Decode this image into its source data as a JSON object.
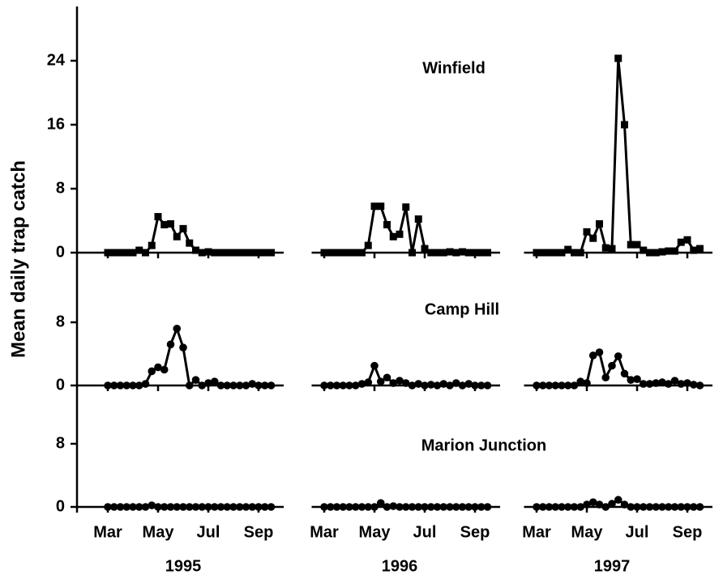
{
  "y_label": "Mean daily trap catch",
  "x_axis": {
    "segments": [
      {
        "year": "1995",
        "xlim": [
          2.5,
          10
        ],
        "xticks": [
          {
            "value": 3,
            "label": "Mar"
          },
          {
            "value": 5,
            "label": "May"
          },
          {
            "value": 7,
            "label": "Jul"
          },
          {
            "value": 9,
            "label": "Sep"
          }
        ],
        "x": [
          3,
          3.25,
          3.5,
          3.75,
          4,
          4.25,
          4.5,
          4.75,
          5,
          5.25,
          5.5,
          5.75,
          6,
          6.25,
          6.5,
          6.75,
          7,
          7.25,
          7.5,
          7.75,
          8,
          8.25,
          8.5,
          8.75,
          9,
          9.25,
          9.5
        ]
      },
      {
        "year": "1996",
        "xlim": [
          2.5,
          10
        ],
        "xticks": [
          {
            "value": 3,
            "label": "Mar"
          },
          {
            "value": 5,
            "label": "May"
          },
          {
            "value": 7,
            "label": "Jul"
          },
          {
            "value": 9,
            "label": "Sep"
          }
        ],
        "x": [
          3,
          3.25,
          3.5,
          3.75,
          4,
          4.25,
          4.5,
          4.75,
          5,
          5.25,
          5.5,
          5.75,
          6,
          6.25,
          6.5,
          6.75,
          7,
          7.25,
          7.5,
          7.75,
          8,
          8.25,
          8.5,
          8.75,
          9,
          9.25,
          9.5
        ]
      },
      {
        "year": "1997",
        "xlim": [
          2.5,
          10
        ],
        "xticks": [
          {
            "value": 3,
            "label": "Mar"
          },
          {
            "value": 5,
            "label": "May"
          },
          {
            "value": 7,
            "label": "Jul"
          },
          {
            "value": 9,
            "label": "Sep"
          }
        ],
        "x": [
          3,
          3.25,
          3.5,
          3.75,
          4,
          4.25,
          4.5,
          4.75,
          5,
          5.25,
          5.5,
          5.75,
          6,
          6.25,
          6.5,
          6.75,
          7,
          7.25,
          7.5,
          7.75,
          8,
          8.25,
          8.5,
          8.75,
          9,
          9.25,
          9.5
        ]
      }
    ]
  },
  "chart_data": [
    {
      "type": "line",
      "title": "Winfield",
      "marker": "square",
      "color": "#000000",
      "ylim": [
        0,
        28
      ],
      "yticks": [
        0,
        8,
        16,
        24
      ],
      "series": [
        {
          "values": [
            0,
            0,
            0,
            0,
            0,
            0.3,
            0,
            0.9,
            4.5,
            3.5,
            3.6,
            2,
            3,
            1.2,
            0.3,
            0,
            0.1,
            0,
            0,
            0,
            0,
            0,
            0,
            0,
            0,
            0,
            0
          ]
        },
        {
          "values": [
            0,
            0,
            0,
            0,
            0,
            0,
            0,
            0.9,
            5.8,
            5.8,
            3.5,
            2,
            2.3,
            5.7,
            0,
            4.2,
            0.5,
            0,
            0,
            0,
            0.1,
            0,
            0.1,
            0,
            0,
            0,
            0
          ]
        },
        {
          "values": [
            0,
            0,
            0,
            0,
            0,
            0.4,
            0,
            0,
            2.6,
            1.8,
            3.6,
            0.6,
            0.5,
            24.3,
            16,
            1,
            1,
            0.3,
            0,
            0,
            0.1,
            0.2,
            0.2,
            1.3,
            1.6,
            0.3,
            0.5
          ]
        }
      ]
    },
    {
      "type": "line",
      "title": "Camp Hill",
      "marker": "circle",
      "color": "#000000",
      "ylim": [
        0,
        8
      ],
      "yticks": [
        0,
        8
      ],
      "series": [
        {
          "values": [
            0,
            0,
            0,
            0,
            0,
            0,
            0.2,
            1.8,
            2.3,
            2,
            5.2,
            7.2,
            4.8,
            0,
            0.7,
            0,
            0.3,
            0.5,
            0,
            0,
            0,
            0,
            0,
            0.2,
            0,
            0,
            0
          ]
        },
        {
          "values": [
            0,
            0,
            0,
            0,
            0,
            0,
            0.2,
            0.4,
            2.5,
            0.5,
            1,
            0.3,
            0.6,
            0.3,
            0,
            0.2,
            0,
            0.1,
            0,
            0.2,
            0,
            0.3,
            0,
            0.2,
            0,
            0,
            0
          ]
        },
        {
          "values": [
            0,
            0,
            0,
            0,
            0,
            0,
            0,
            0.5,
            0.3,
            3.8,
            4.2,
            1,
            2.5,
            3.7,
            1.5,
            0.7,
            0.8,
            0.2,
            0.2,
            0.3,
            0.4,
            0.2,
            0.6,
            0.2,
            0.3,
            0.1,
            0
          ]
        }
      ]
    },
    {
      "type": "line",
      "title": "Marion Junction",
      "marker": "circle",
      "color": "#000000",
      "ylim": [
        0,
        8
      ],
      "yticks": [
        0,
        8
      ],
      "series": [
        {
          "values": [
            0,
            0,
            0,
            0,
            0,
            0,
            0,
            0.2,
            0,
            0,
            0,
            0,
            0,
            0,
            0,
            0,
            0,
            0,
            0,
            0,
            0,
            0,
            0,
            0,
            0,
            0,
            0
          ]
        },
        {
          "values": [
            0,
            0,
            0,
            0,
            0,
            0,
            0,
            0,
            0,
            0.5,
            0,
            0.1,
            0,
            0,
            0,
            0,
            0,
            0,
            0,
            0,
            0,
            0,
            0,
            0,
            0,
            0,
            0
          ]
        },
        {
          "values": [
            0,
            0,
            0,
            0,
            0,
            0,
            0,
            0,
            0.3,
            0.6,
            0.3,
            0,
            0.4,
            0.9,
            0.3,
            0,
            0,
            0,
            0,
            0,
            0,
            0,
            0,
            0,
            0,
            0,
            0
          ]
        }
      ]
    }
  ]
}
